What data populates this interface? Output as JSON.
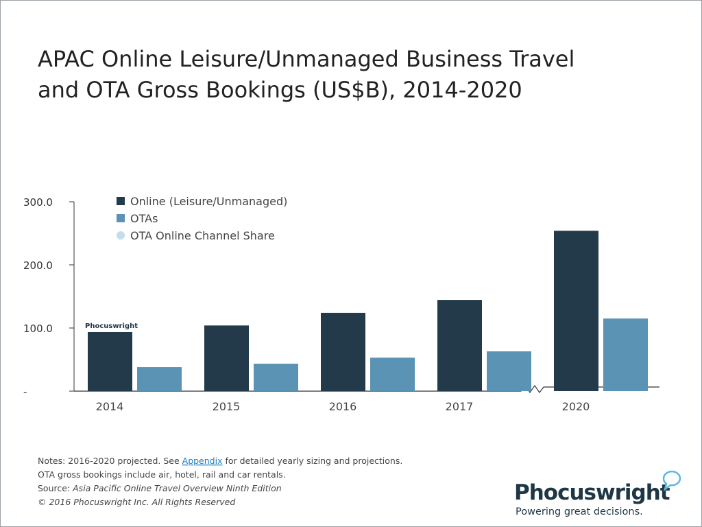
{
  "chart_data": {
    "type": "bar",
    "title": [
      "APAC Online Leisure/Unmanaged Business Travel",
      "and OTA Gross Bookings (US$B), 2014-2020"
    ],
    "categories": [
      "2014",
      "2015",
      "2016",
      "2017",
      "2020"
    ],
    "series": [
      {
        "name": "Online (Leisure/Unmanaged)",
        "color": "#233a4a",
        "values": [
          93.5,
          104,
          124,
          144.5,
          254
        ]
      },
      {
        "name": "OTAs",
        "color": "#5b93b5",
        "values": [
          38,
          43.5,
          53,
          63,
          115
        ]
      },
      {
        "name": "OTA Online Channel Share",
        "color": "#c5dced",
        "values": [
          null,
          null,
          null,
          null,
          null
        ]
      }
    ],
    "ylim": [
      0,
      300
    ],
    "yticks": [
      {
        "value": 0,
        "label": "-"
      },
      {
        "value": 100,
        "label": "100.0"
      },
      {
        "value": 200,
        "label": "200.0"
      },
      {
        "value": 300,
        "label": "300.0"
      }
    ],
    "watermark": "Phocuswright"
  },
  "footer": {
    "notes": [
      "Notes: 2016-2020 projected. See ",
      "Appendix",
      " for detailed yearly sizing and projections."
    ],
    "line2": "OTA gross bookings include air, hotel, rail and car rentals.",
    "source": [
      "Source: ",
      "Asia Pacific Online Travel Overview Ninth Edition"
    ],
    "copyright": "© 2016 Phocuswright Inc. All Rights Reserved"
  },
  "logo": {
    "name": "Phocuswright",
    "tagline": "Powering great decisions."
  }
}
